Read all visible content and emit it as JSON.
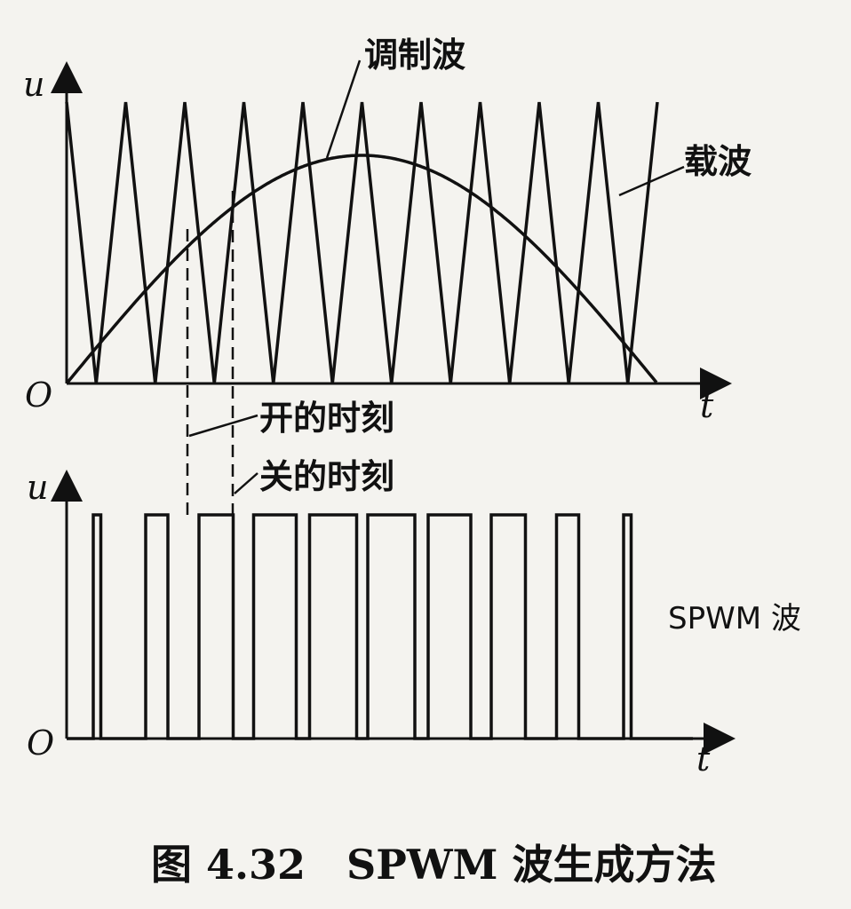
{
  "upper": {
    "y_axis": "u",
    "x_axis": "t",
    "origin": "O",
    "label_modulation": "调制波",
    "label_carrier": "载波",
    "carrier_periods": 10,
    "modulation_shape": "half-sine"
  },
  "markers": {
    "on_time": "开的时刻",
    "off_time": "关的时刻"
  },
  "lower": {
    "y_axis": "u",
    "x_axis": "t",
    "origin": "O",
    "label_output": "SPWM 波"
  },
  "caption": "图 4.32　SPWM 波生成方法",
  "colors": {
    "ink": "#111111",
    "paper": "#f4f3ef"
  }
}
